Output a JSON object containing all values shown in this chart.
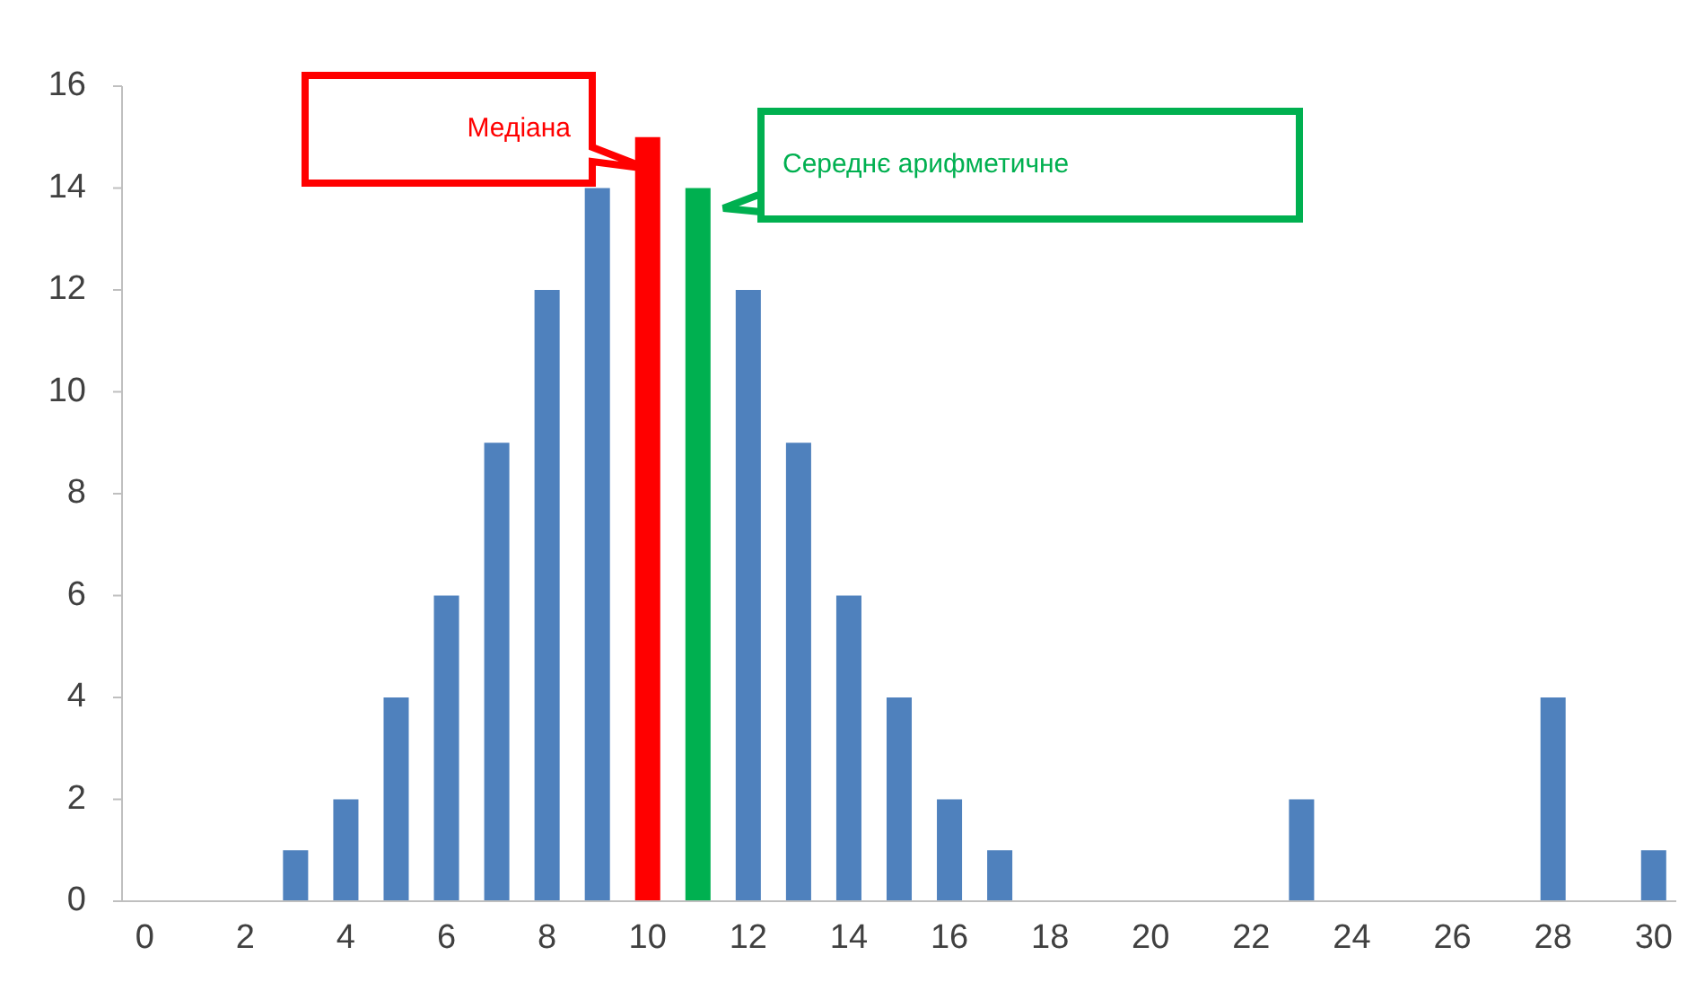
{
  "chart_data": {
    "type": "bar",
    "x": [
      0,
      1,
      2,
      3,
      4,
      5,
      6,
      7,
      8,
      9,
      10,
      11,
      12,
      13,
      14,
      15,
      16,
      17,
      18,
      19,
      20,
      21,
      22,
      23,
      24,
      25,
      26,
      27,
      28,
      29,
      30
    ],
    "values": [
      0,
      0,
      0,
      1,
      2,
      4,
      6,
      9,
      12,
      14,
      15,
      14,
      12,
      9,
      6,
      4,
      2,
      1,
      0,
      0,
      0,
      0,
      0,
      2,
      0,
      0,
      0,
      0,
      4,
      0,
      1
    ],
    "colors": [
      "#4f81bd",
      "#4f81bd",
      "#4f81bd",
      "#4f81bd",
      "#4f81bd",
      "#4f81bd",
      "#4f81bd",
      "#4f81bd",
      "#4f81bd",
      "#4f81bd",
      "#ff0000",
      "#00b050",
      "#4f81bd",
      "#4f81bd",
      "#4f81bd",
      "#4f81bd",
      "#4f81bd",
      "#4f81bd",
      "#4f81bd",
      "#4f81bd",
      "#4f81bd",
      "#4f81bd",
      "#4f81bd",
      "#4f81bd",
      "#4f81bd",
      "#4f81bd",
      "#4f81bd",
      "#4f81bd",
      "#4f81bd",
      "#4f81bd",
      "#4f81bd"
    ],
    "xlim": [
      -0.45,
      30.45
    ],
    "xticks": [
      0,
      2,
      4,
      6,
      8,
      10,
      12,
      14,
      16,
      18,
      20,
      22,
      24,
      26,
      28,
      30
    ],
    "ylim": [
      0,
      16
    ],
    "yticks": [
      0,
      2,
      4,
      6,
      8,
      10,
      12,
      14,
      16
    ],
    "grid": false,
    "annotations": [
      "Медіана",
      "Середнє арифметичне"
    ]
  }
}
